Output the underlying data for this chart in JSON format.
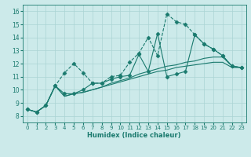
{
  "xlabel": "Humidex (Indice chaleur)",
  "bg_color": "#cceaea",
  "grid_color": "#aad4d4",
  "line_color": "#1a7a6e",
  "xlim": [
    -0.5,
    23.5
  ],
  "ylim": [
    7.5,
    16.5
  ],
  "xticks": [
    0,
    1,
    2,
    3,
    4,
    5,
    6,
    7,
    8,
    9,
    10,
    11,
    12,
    13,
    14,
    15,
    16,
    17,
    18,
    19,
    20,
    21,
    22,
    23
  ],
  "yticks": [
    8,
    9,
    10,
    11,
    12,
    13,
    14,
    15,
    16
  ],
  "series_dashed_marker": [
    8.5,
    8.3,
    8.8,
    10.3,
    11.3,
    12.0,
    11.3,
    10.5,
    10.5,
    11.0,
    11.1,
    12.1,
    12.8,
    14.0,
    12.6,
    15.8,
    15.2,
    15.0,
    14.2,
    13.5,
    13.1,
    12.6,
    11.8,
    11.7
  ],
  "series_solid_marker": [
    8.5,
    8.3,
    8.8,
    10.3,
    9.7,
    9.7,
    10.0,
    10.5,
    10.5,
    10.8,
    11.0,
    11.1,
    12.7,
    11.4,
    14.3,
    11.0,
    11.2,
    11.4,
    14.2,
    13.5,
    13.1,
    12.6,
    11.8,
    11.7
  ],
  "series_solid1": [
    8.5,
    8.3,
    8.8,
    10.3,
    9.5,
    9.7,
    9.8,
    10.0,
    10.2,
    10.5,
    10.7,
    10.9,
    11.2,
    11.4,
    11.6,
    11.8,
    11.9,
    12.1,
    12.2,
    12.4,
    12.5,
    12.5,
    11.8,
    11.7
  ],
  "series_solid2": [
    8.5,
    8.3,
    8.8,
    10.3,
    9.5,
    9.7,
    9.8,
    10.0,
    10.2,
    10.4,
    10.6,
    10.8,
    11.0,
    11.2,
    11.4,
    11.5,
    11.7,
    11.8,
    11.9,
    12.0,
    12.1,
    12.1,
    11.7,
    11.7
  ]
}
